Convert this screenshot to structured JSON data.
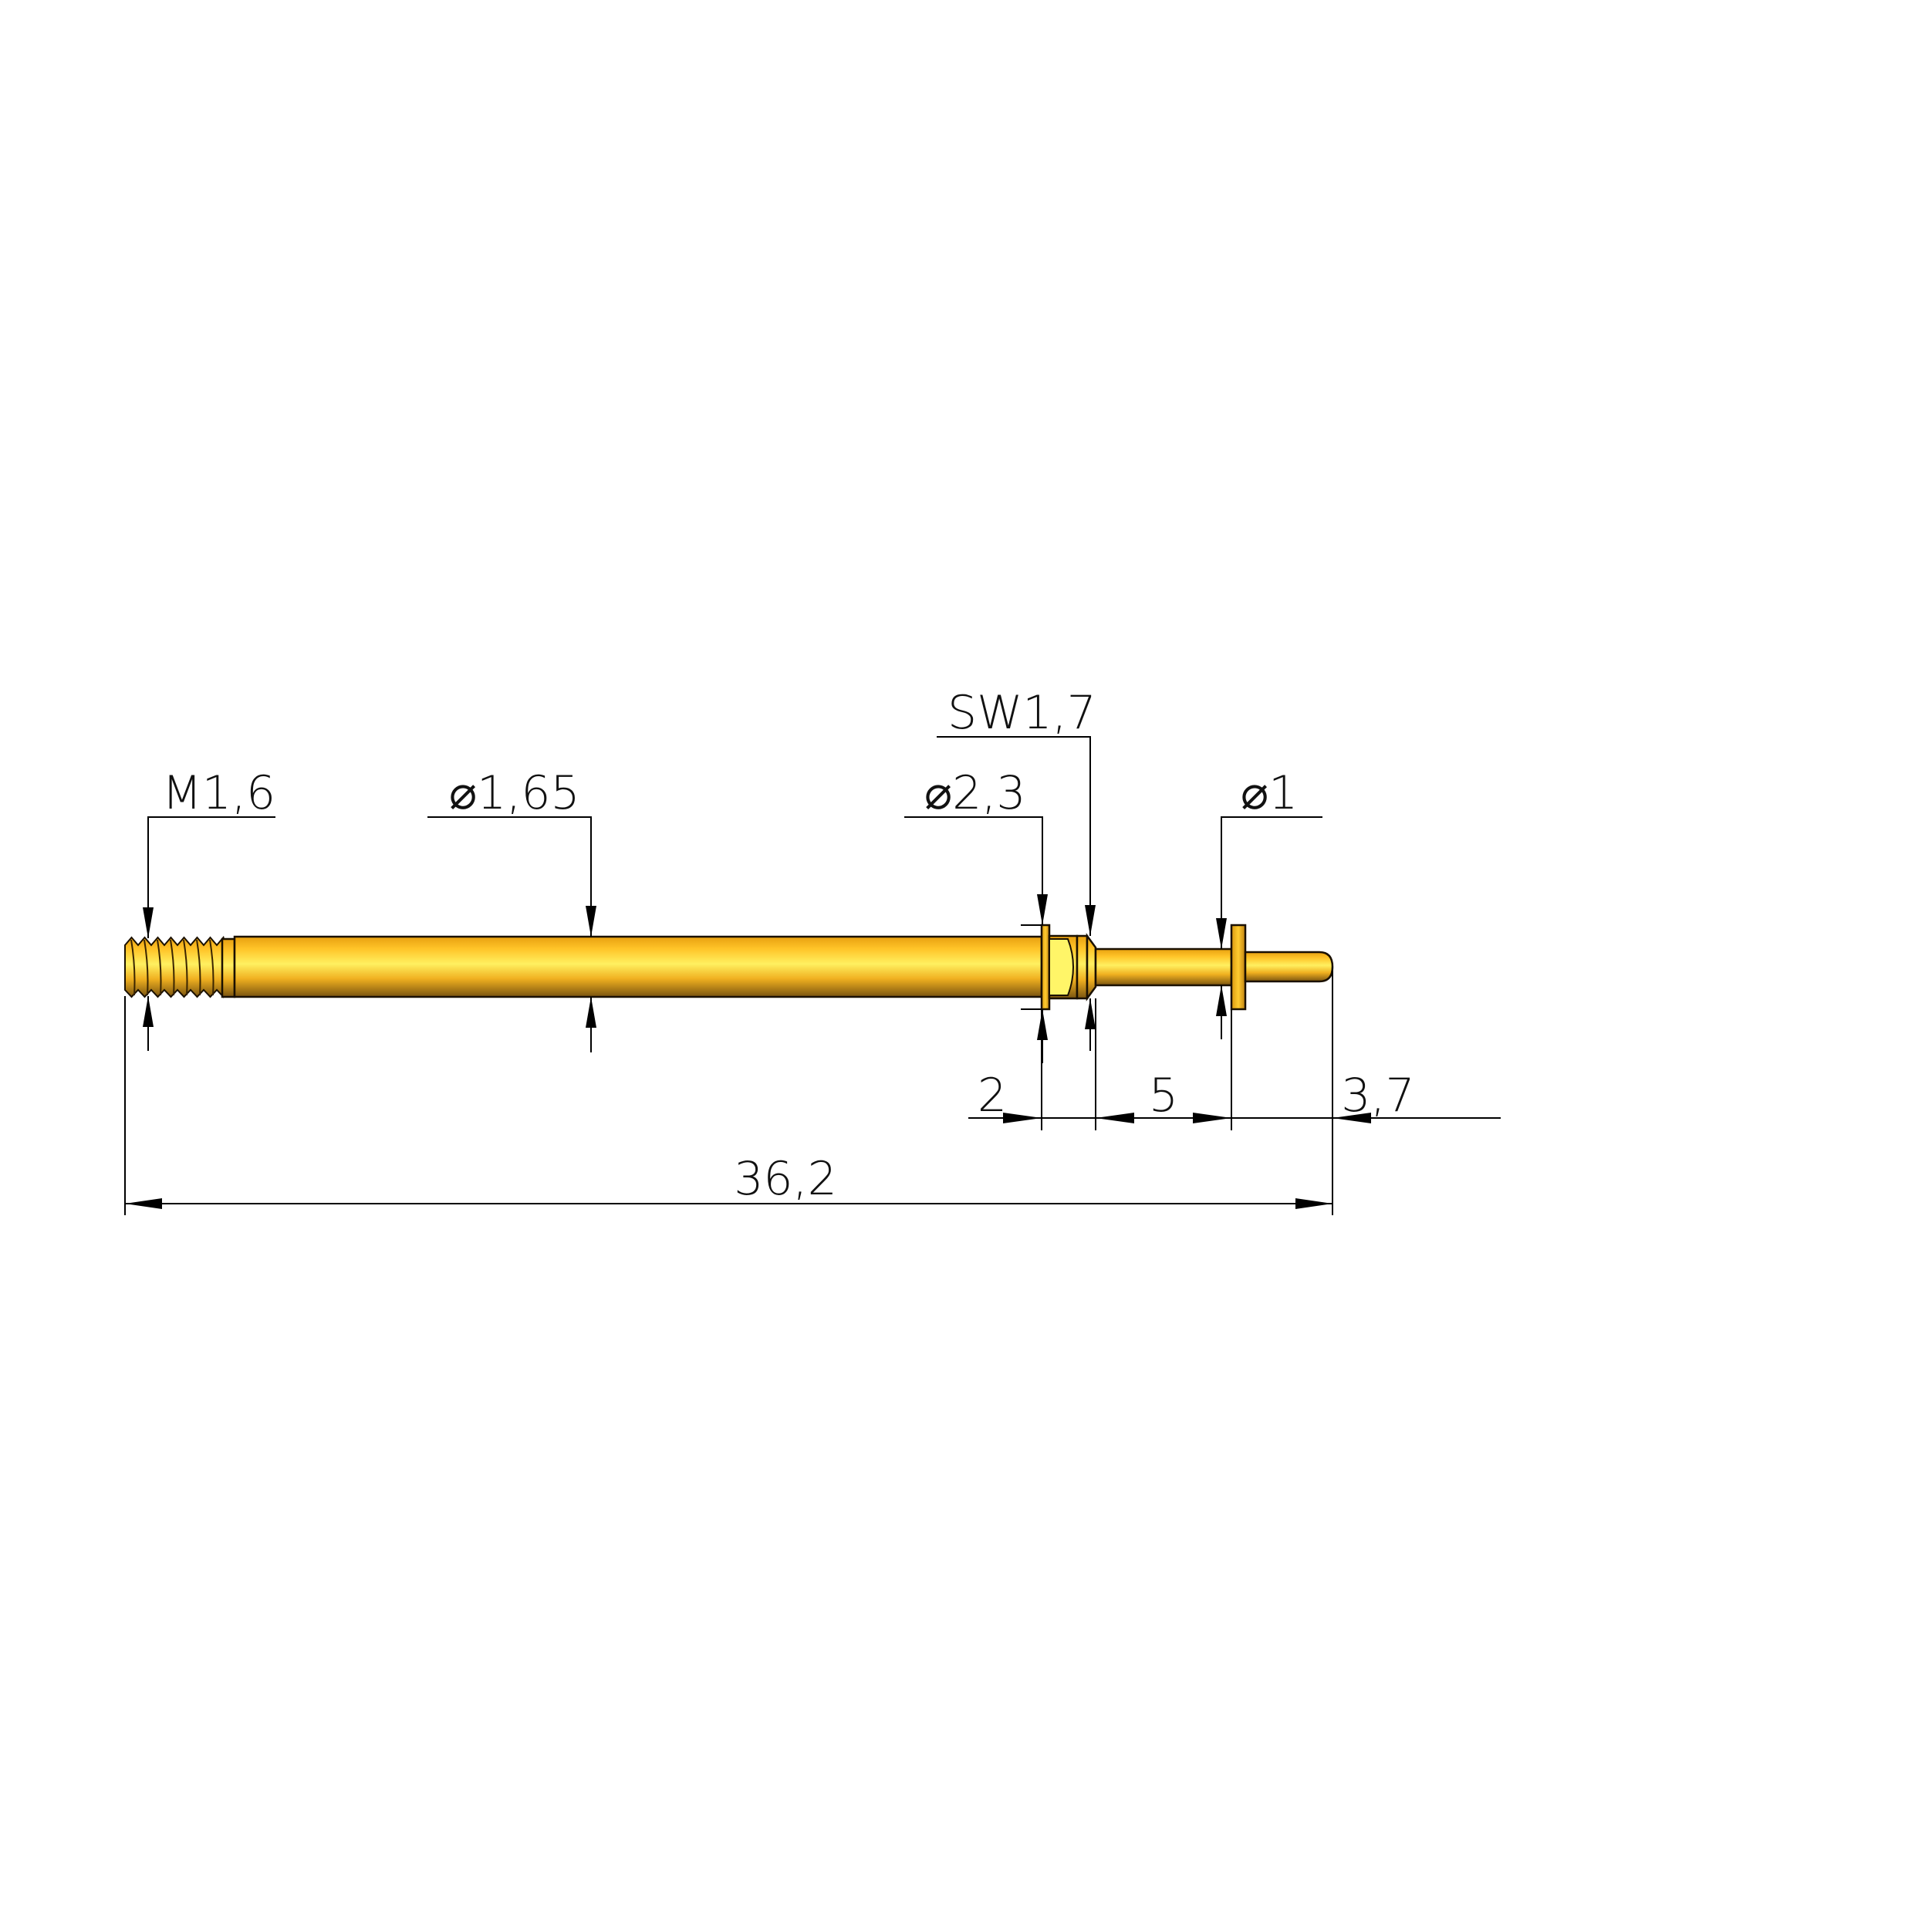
{
  "colors": {
    "gold_top": "#f0a818",
    "gold_mid": "#fff060",
    "gold_bottom": "#7a5410",
    "hex_face": "#fff568",
    "line": "#000000"
  },
  "annotations": {
    "thread": "M1,6",
    "shaft_diameter": "⌀1,65",
    "flange_diameter": "⌀2,3",
    "hex_size": "SW1,7",
    "pin_diameter": "⌀1"
  },
  "dimensions": {
    "flange_offset": "2",
    "pin_length": "5",
    "tip_length": "3,7",
    "overall_length": "36,2"
  }
}
